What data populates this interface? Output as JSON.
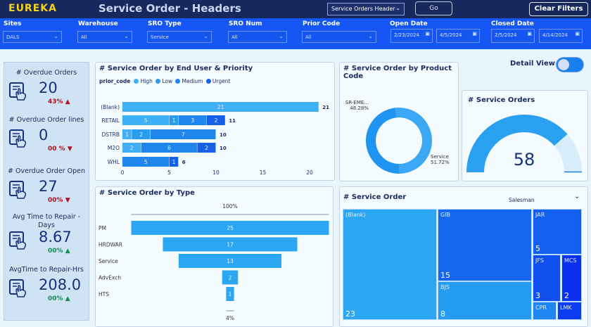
{
  "header": {
    "logo": "EUREKA",
    "title": "Service Order - Headers",
    "view_select": "Service Orders Header",
    "go_label": "Go",
    "clear_filters_label": "Clear Filters"
  },
  "filters": [
    {
      "label": "Sites",
      "value": "DALS"
    },
    {
      "label": "Warehouse",
      "value": "All"
    },
    {
      "label": "SRO Type",
      "value": "Service"
    },
    {
      "label": "SRO Num",
      "value": "All"
    },
    {
      "label": "Prior Code",
      "value": "All"
    }
  ],
  "open_date": {
    "label": "Open Date",
    "from": "2/23/2024",
    "to": "4/5/2024"
  },
  "closed_date": {
    "label": "Closed Date",
    "from": "2/5/2024",
    "to": "4/14/2024"
  },
  "kpis": [
    {
      "title": "# Overdue Orders",
      "value": "20",
      "delta": "43%",
      "trend": "up",
      "status": "red"
    },
    {
      "title": "# Overdue Order lines",
      "value": "0",
      "delta": "00 %",
      "trend": "down",
      "status": "red"
    },
    {
      "title": "# Overdue Order Open",
      "value": "27",
      "delta": "00%",
      "trend": "down",
      "status": "red"
    },
    {
      "title": "Avg Time to Repair - Days",
      "value": "8.67",
      "delta": "00%",
      "trend": "up",
      "status": "green"
    },
    {
      "title": "AvgTime to Repair-Hrs",
      "value": "208.0",
      "delta": "00%",
      "trend": "up",
      "status": "green"
    }
  ],
  "detail_view": {
    "label": "Detail View",
    "on": true
  },
  "chart_data": [
    {
      "type": "bar",
      "title": "# Service Order by End User & Priority",
      "legend_title": "prior_code",
      "legend_position": "top-left",
      "orientation": "horizontal",
      "stacked": true,
      "categories": [
        "(Blank)",
        "RETAIL",
        "DSTRB",
        "M2O",
        "WHL"
      ],
      "series": [
        {
          "name": "High",
          "color": "#3fb0f5",
          "values": [
            21,
            5,
            1,
            2,
            0
          ]
        },
        {
          "name": "Low",
          "color": "#2a9cf0",
          "values": [
            0,
            1,
            2,
            0,
            0
          ]
        },
        {
          "name": "Medium",
          "color": "#1e86ec",
          "values": [
            0,
            3,
            7,
            6,
            5
          ]
        },
        {
          "name": "Urgent",
          "color": "#1560e6",
          "values": [
            0,
            2,
            0,
            2,
            1
          ]
        }
      ],
      "totals": [
        21,
        11,
        10,
        10,
        6
      ],
      "xlim": [
        0,
        22
      ],
      "xticks": [
        0,
        5,
        10,
        15,
        20
      ]
    },
    {
      "type": "pie",
      "title": "# Service Order by Product Code",
      "donut": true,
      "slices": [
        {
          "label": "SR-EME...",
          "pct": "48.28%",
          "value": 48.28,
          "color": "#1f95ef"
        },
        {
          "label": "Service",
          "pct": "51.72%",
          "value": 51.72,
          "color": "#3aa8f4"
        }
      ]
    },
    {
      "type": "gauge",
      "title": "# Service Orders",
      "value": 58,
      "display": "58",
      "fill_fraction": 0.77
    },
    {
      "type": "bar",
      "title": "# Service Order by Type",
      "subtype": "funnel",
      "categories": [
        "PM",
        "HRDWAR",
        "Service",
        "AdvExch",
        "HTS"
      ],
      "values": [
        25,
        17,
        13,
        2,
        1
      ],
      "top_pct": "100%",
      "bottom_pct": "4%"
    },
    {
      "type": "treemap",
      "title": "# Service Order",
      "field_select": "Salesman",
      "items": [
        {
          "label": "(Blank)",
          "value": "23"
        },
        {
          "label": "GIB",
          "value": "15"
        },
        {
          "label": "BJS",
          "value": "8"
        },
        {
          "label": "JAR",
          "value": "5"
        },
        {
          "label": "JFS",
          "value": "3"
        },
        {
          "label": "MCS",
          "value": "2"
        },
        {
          "label": "CPR",
          "value": ""
        },
        {
          "label": "LMK",
          "value": ""
        }
      ]
    }
  ]
}
